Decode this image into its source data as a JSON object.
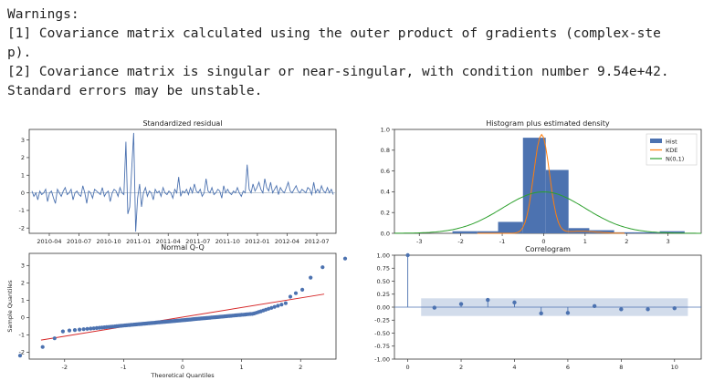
{
  "warnings": {
    "header": "Warnings:",
    "lines": [
      "[1] Covariance matrix calculated using the outer product of gradients (complex-ste",
      "p).",
      "[2] Covariance matrix is singular or near-singular, with condition number 9.54e+42.",
      "Standard errors may be unstable."
    ]
  },
  "colors": {
    "blue": "#4c72b0",
    "orange": "#ff7f0e",
    "green": "#2ca02c",
    "red": "#d62728",
    "band": "#4c72b0"
  },
  "chart_data": [
    {
      "type": "line",
      "title": "Standardized residual",
      "xticks": [
        "2010-04",
        "2010-07",
        "2010-10",
        "2011-01",
        "2011-04",
        "2011-07",
        "2011-10",
        "2012-01",
        "2012-04",
        "2012-07"
      ],
      "yticks": [
        -2,
        -1,
        0,
        1,
        2,
        3
      ],
      "ylim": [
        -2.3,
        3.6
      ],
      "values": [
        0.1,
        -0.2,
        0.0,
        -0.4,
        0.1,
        -0.1,
        0.0,
        0.2,
        -0.5,
        0.0,
        0.1,
        -0.3,
        -0.6,
        0.2,
        0.0,
        -0.2,
        0.1,
        0.3,
        -0.1,
        0.0,
        0.2,
        -0.4,
        0.0,
        0.1,
        -0.1,
        -0.2,
        0.4,
        0.0,
        -0.6,
        0.1,
        0.0,
        -0.3,
        0.2,
        0.1,
        0.0,
        -0.1,
        0.3,
        -0.2,
        0.0,
        0.1,
        -0.5,
        0.0,
        0.2,
        0.1,
        -0.2,
        0.3,
        0.0,
        -0.1,
        2.9,
        -1.2,
        -0.8,
        1.4,
        3.4,
        -2.2,
        -0.3,
        0.5,
        -0.8,
        0.0,
        0.3,
        -0.2,
        0.1,
        0.0,
        -0.4,
        0.2,
        0.0,
        0.1,
        -0.2,
        0.3,
        0.0,
        -0.1,
        0.1,
        0.0,
        -0.3,
        0.2,
        0.0,
        0.9,
        -0.2,
        0.1,
        0.0,
        0.2,
        -0.1,
        0.3,
        0.0,
        0.5,
        0.1,
        0.0,
        0.2,
        -0.2,
        0.0,
        0.8,
        0.1,
        0.0,
        0.3,
        -0.1,
        0.0,
        0.2,
        0.1,
        -0.3,
        0.4,
        0.0,
        0.2,
        0.0,
        -0.1,
        0.1,
        0.0,
        0.3,
        0.0,
        -0.2,
        0.1,
        0.0,
        1.6,
        0.2,
        0.0,
        0.5,
        0.1,
        0.3,
        0.6,
        0.2,
        0.0,
        0.8,
        0.3,
        0.1,
        0.6,
        0.0,
        0.2,
        0.4,
        -0.1,
        0.3,
        0.1,
        0.0,
        0.3,
        0.6,
        0.1,
        0.0,
        0.2,
        0.4,
        0.1,
        0.0,
        0.2,
        0.1,
        0.0,
        0.3,
        0.2,
        -0.1,
        0.6,
        0.0,
        0.2,
        0.0,
        0.4,
        0.1,
        0.0,
        0.3,
        0.0,
        0.2,
        -0.1
      ]
    },
    {
      "type": "bar",
      "title": "Histogram plus estimated density",
      "xticks": [
        -3,
        -2,
        -1,
        0,
        1,
        2,
        3
      ],
      "yticks": [
        0.0,
        0.2,
        0.4,
        0.6,
        0.8,
        1.0
      ],
      "xlim": [
        -3.6,
        3.8
      ],
      "ylim": [
        0,
        1.0
      ],
      "bins": [
        {
          "x0": -2.2,
          "x1": -1.6,
          "h": 0.02
        },
        {
          "x0": -1.6,
          "x1": -1.1,
          "h": 0.02
        },
        {
          "x0": -1.1,
          "x1": -0.5,
          "h": 0.11
        },
        {
          "x0": -0.5,
          "x1": 0.05,
          "h": 0.92
        },
        {
          "x0": 0.05,
          "x1": 0.6,
          "h": 0.61
        },
        {
          "x0": 0.6,
          "x1": 1.1,
          "h": 0.05
        },
        {
          "x0": 1.1,
          "x1": 1.7,
          "h": 0.03
        },
        {
          "x0": 1.7,
          "x1": 2.2,
          "h": 0.01
        },
        {
          "x0": 2.2,
          "x1": 2.8,
          "h": 0.01
        },
        {
          "x0": 2.8,
          "x1": 3.4,
          "h": 0.02
        }
      ],
      "legend": [
        "Hist",
        "KDE",
        "N(0,1)"
      ],
      "legend_position": "top-right"
    },
    {
      "type": "scatter",
      "title": "Normal Q-Q",
      "xlabel": "Theoretical Quantiles",
      "ylabel": "Sample Quantiles",
      "xticks": [
        -2,
        -1,
        0,
        1,
        2
      ],
      "yticks": [
        -2,
        -1,
        0,
        1,
        2,
        3
      ],
      "xlim": [
        -2.6,
        2.6
      ],
      "ylim": [
        -2.4,
        3.7
      ],
      "fit_line": [
        [
          -2.4,
          -1.3
        ],
        [
          2.4,
          1.35
        ]
      ]
    },
    {
      "type": "bar",
      "title": "Correlogram",
      "xticks": [
        0,
        2,
        4,
        6,
        8,
        10
      ],
      "yticks": [
        "1.00",
        "0.75",
        "0.50",
        "0.25",
        "0.00",
        "-0.25",
        "-0.50",
        "-0.75",
        "-1.00"
      ],
      "xlim": [
        -0.5,
        11
      ],
      "ylim": [
        -1.0,
        1.0
      ],
      "confidence_band": 0.17,
      "acf": [
        1.0,
        -0.01,
        0.06,
        0.14,
        0.09,
        -0.12,
        -0.11,
        0.02,
        -0.04,
        -0.04,
        -0.02
      ]
    }
  ]
}
